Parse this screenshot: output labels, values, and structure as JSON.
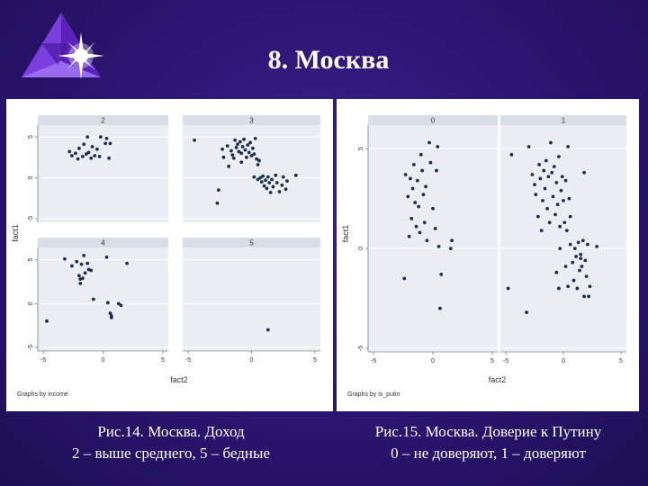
{
  "slide": {
    "title": "8. Москва",
    "caption_left": {
      "fig": "Рис.14.",
      "text": "Москва. Доход",
      "line2": "2 – выше среднего, 5 – бедные"
    },
    "caption_right": {
      "fig": "Рис.15.",
      "text": "Москва. Доверие к Путину",
      "line2": "0 – не доверяют, 1 – доверяют"
    }
  },
  "colors": {
    "background": "#2a1570",
    "marker": "#1f2f4f",
    "strip": "#d9dee6",
    "plot_bg": "#eaeef3"
  },
  "logo": {
    "icon": "star-burst-icon"
  },
  "chart_data": [
    {
      "type": "scatter",
      "xlabel": "fact2",
      "ylabel": "fact1",
      "note": "Graphs by income",
      "xlim": [
        -5,
        5
      ],
      "ylim": [
        -5,
        6
      ],
      "xticks": [
        "-5",
        "0",
        "5"
      ],
      "yticks": [
        "-5",
        "0",
        "5"
      ],
      "panels": [
        {
          "label": "2",
          "points": [
            [
              -2.8,
              3.2
            ],
            [
              -2.6,
              2.7
            ],
            [
              -2.3,
              3.0
            ],
            [
              -2.0,
              3.6
            ],
            [
              -1.7,
              2.6
            ],
            [
              -1.6,
              4.1
            ],
            [
              -1.3,
              5.0
            ],
            [
              -1.2,
              3.1
            ],
            [
              -1.0,
              2.4
            ],
            [
              -0.7,
              2.7
            ],
            [
              -0.5,
              3.5
            ],
            [
              -0.3,
              2.6
            ],
            [
              -0.2,
              5.0
            ],
            [
              0.2,
              4.2
            ],
            [
              0.3,
              4.8
            ],
            [
              0.5,
              2.4
            ],
            [
              0.6,
              4.2
            ],
            [
              -1.4,
              2.9
            ],
            [
              -2.1,
              2.3
            ],
            [
              -0.9,
              3.8
            ]
          ]
        },
        {
          "label": "3",
          "points": [
            [
              -4.5,
              4.6
            ],
            [
              -2.6,
              -1.5
            ],
            [
              -2.7,
              -3.1
            ],
            [
              -2.3,
              3.5
            ],
            [
              -2.2,
              2.5
            ],
            [
              -1.9,
              3.9
            ],
            [
              -1.6,
              3.3
            ],
            [
              -1.4,
              2.4
            ],
            [
              -1.3,
              4.6
            ],
            [
              -1.2,
              3.7
            ],
            [
              -1.1,
              4.1
            ],
            [
              -1.0,
              3.2
            ],
            [
              -0.9,
              4.4
            ],
            [
              -0.8,
              3.0
            ],
            [
              -0.7,
              3.8
            ],
            [
              -0.6,
              4.7
            ],
            [
              -0.5,
              3.4
            ],
            [
              -0.4,
              2.5
            ],
            [
              -0.3,
              4.0
            ],
            [
              -0.2,
              3.1
            ],
            [
              -0.1,
              4.3
            ],
            [
              0.0,
              2.7
            ],
            [
              0.1,
              3.6
            ],
            [
              0.2,
              2.9
            ],
            [
              0.3,
              4.8
            ],
            [
              0.4,
              2.3
            ],
            [
              0.5,
              1.6
            ],
            [
              0.6,
              2.1
            ],
            [
              0.2,
              0.1
            ],
            [
              0.5,
              -0.2
            ],
            [
              0.7,
              0.0
            ],
            [
              0.8,
              -0.5
            ],
            [
              0.9,
              0.2
            ],
            [
              1.0,
              -1.0
            ],
            [
              1.1,
              -0.3
            ],
            [
              1.2,
              -1.3
            ],
            [
              1.3,
              0.1
            ],
            [
              1.4,
              -0.6
            ],
            [
              1.5,
              -1.8
            ],
            [
              1.6,
              -0.2
            ],
            [
              1.7,
              -1.1
            ],
            [
              1.9,
              0.3
            ],
            [
              2.0,
              -0.6
            ],
            [
              2.2,
              -1.7
            ],
            [
              2.4,
              -0.9
            ],
            [
              2.5,
              0.1
            ],
            [
              2.7,
              -1.4
            ],
            [
              2.8,
              -0.4
            ],
            [
              3.5,
              0.3
            ],
            [
              -1.8,
              1.4
            ],
            [
              -0.8,
              1.9
            ],
            [
              -1.5,
              2.8
            ]
          ]
        },
        {
          "label": "4",
          "points": [
            [
              -4.7,
              -2.0
            ],
            [
              -3.2,
              5.1
            ],
            [
              -2.6,
              4.3
            ],
            [
              -2.2,
              4.8
            ],
            [
              -2.0,
              3.2
            ],
            [
              -1.9,
              2.3
            ],
            [
              -1.8,
              4.5
            ],
            [
              -1.7,
              2.9
            ],
            [
              -1.6,
              5.5
            ],
            [
              -1.5,
              3.5
            ],
            [
              -1.3,
              4.6
            ],
            [
              -1.2,
              3.9
            ],
            [
              -1.0,
              3.8
            ],
            [
              -0.8,
              0.5
            ],
            [
              0.3,
              5.3
            ],
            [
              0.6,
              -1.1
            ],
            [
              0.7,
              -1.6
            ],
            [
              0.7,
              -1.4
            ],
            [
              1.3,
              0.0
            ],
            [
              1.5,
              -0.2
            ],
            [
              2.0,
              4.6
            ],
            [
              0.4,
              0.1
            ],
            [
              -1.9,
              2.8
            ]
          ]
        },
        {
          "label": "5",
          "points": [
            [
              1.3,
              -3.0
            ]
          ]
        }
      ]
    },
    {
      "type": "scatter",
      "xlabel": "fact2",
      "ylabel": "fact1",
      "note": "Graphs by is_putin",
      "xlim": [
        -5,
        5
      ],
      "ylim": [
        -5,
        6
      ],
      "xticks": [
        "-5",
        "0",
        "5"
      ],
      "yticks": [
        "-5",
        "0",
        "5"
      ],
      "panels": [
        {
          "label": "0",
          "points": [
            [
              -2.4,
              -1.5
            ],
            [
              -2.3,
              3.7
            ],
            [
              -2.1,
              2.6
            ],
            [
              -2.0,
              0.6
            ],
            [
              -1.9,
              3.5
            ],
            [
              -1.8,
              1.5
            ],
            [
              -1.7,
              3.0
            ],
            [
              -1.6,
              4.2
            ],
            [
              -1.5,
              2.3
            ],
            [
              -1.4,
              1.1
            ],
            [
              -1.3,
              3.4
            ],
            [
              -1.2,
              2.1
            ],
            [
              -1.1,
              0.8
            ],
            [
              -1.0,
              4.7
            ],
            [
              -0.9,
              3.9
            ],
            [
              -0.8,
              2.7
            ],
            [
              -0.7,
              1.3
            ],
            [
              -0.6,
              3.1
            ],
            [
              -0.5,
              0.4
            ],
            [
              -0.3,
              5.3
            ],
            [
              -0.2,
              4.3
            ],
            [
              0.0,
              2.0
            ],
            [
              0.2,
              1.0
            ],
            [
              0.3,
              3.9
            ],
            [
              0.4,
              5.1
            ],
            [
              0.6,
              -3.0
            ],
            [
              0.7,
              -1.3
            ],
            [
              1.5,
              0.0
            ],
            [
              1.6,
              0.4
            ],
            [
              0.5,
              0.1
            ]
          ]
        },
        {
          "label": "1",
          "points": [
            [
              -4.8,
              -2.0
            ],
            [
              -4.5,
              4.7
            ],
            [
              -3.2,
              -3.2
            ],
            [
              -3.0,
              5.1
            ],
            [
              -2.7,
              3.7
            ],
            [
              -2.5,
              3.2
            ],
            [
              -2.4,
              2.7
            ],
            [
              -2.2,
              1.6
            ],
            [
              -2.1,
              4.2
            ],
            [
              -2.0,
              3.5
            ],
            [
              -1.9,
              0.9
            ],
            [
              -1.8,
              2.4
            ],
            [
              -1.7,
              3.9
            ],
            [
              -1.6,
              3.0
            ],
            [
              -1.5,
              4.4
            ],
            [
              -1.4,
              2.0
            ],
            [
              -1.3,
              3.6
            ],
            [
              -1.2,
              1.3
            ],
            [
              -1.1,
              5.3
            ],
            [
              -1.0,
              3.8
            ],
            [
              -0.9,
              2.6
            ],
            [
              -0.8,
              4.1
            ],
            [
              -0.7,
              1.7
            ],
            [
              -0.6,
              3.3
            ],
            [
              -0.5,
              2.2
            ],
            [
              -0.4,
              4.6
            ],
            [
              -0.3,
              1.1
            ],
            [
              -0.2,
              2.9
            ],
            [
              -0.1,
              3.6
            ],
            [
              0.0,
              2.4
            ],
            [
              0.1,
              1.3
            ],
            [
              0.2,
              3.4
            ],
            [
              0.3,
              0.9
            ],
            [
              0.4,
              5.1
            ],
            [
              0.5,
              2.5
            ],
            [
              0.6,
              1.6
            ],
            [
              -0.6,
              -1.2
            ],
            [
              -0.4,
              -2.0
            ],
            [
              -0.3,
              0.0
            ],
            [
              0.2,
              -0.9
            ],
            [
              0.4,
              -1.9
            ],
            [
              0.6,
              0.2
            ],
            [
              0.8,
              -0.7
            ],
            [
              0.9,
              -1.6
            ],
            [
              1.0,
              0.0
            ],
            [
              1.1,
              -0.4
            ],
            [
              1.2,
              -2.0
            ],
            [
              1.3,
              0.3
            ],
            [
              1.4,
              -1.1
            ],
            [
              1.5,
              -0.3
            ],
            [
              1.6,
              -0.9
            ],
            [
              1.7,
              0.4
            ],
            [
              1.8,
              -2.4
            ],
            [
              1.9,
              -0.6
            ],
            [
              2.0,
              -1.4
            ],
            [
              2.1,
              0.2
            ],
            [
              2.2,
              -2.4
            ],
            [
              2.3,
              -1.9
            ],
            [
              2.9,
              0.1
            ],
            [
              1.8,
              3.8
            ],
            [
              1.5,
              -0.5
            ]
          ]
        }
      ]
    }
  ]
}
